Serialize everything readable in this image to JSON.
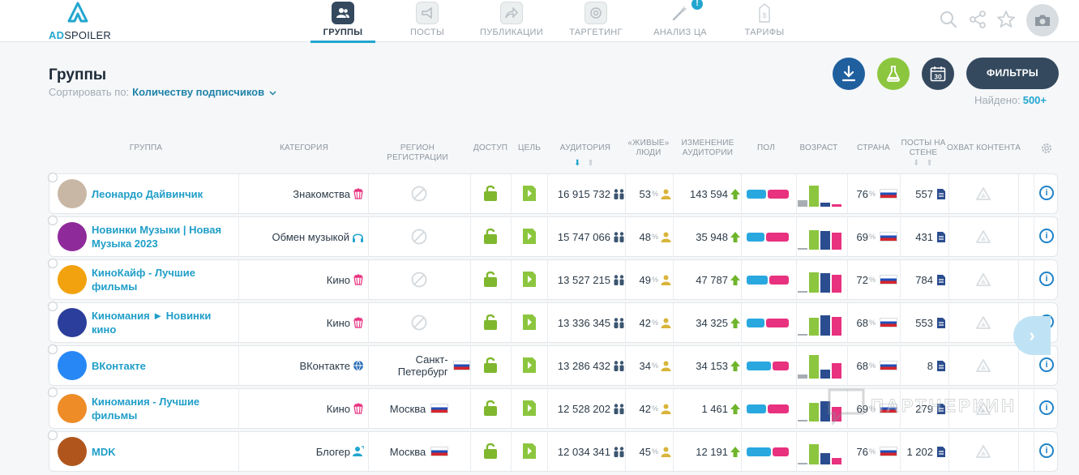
{
  "app": {
    "logo_part1": "AD",
    "logo_part2": "SPOILER"
  },
  "nav": [
    {
      "label": "ГРУППЫ",
      "icon": "groups-icon",
      "active": true
    },
    {
      "label": "ПОСТЫ",
      "icon": "megaphone-icon"
    },
    {
      "label": "ПУБЛИКАЦИИ",
      "icon": "share-icon"
    },
    {
      "label": "ТАРГЕТИНГ",
      "icon": "target-icon"
    },
    {
      "label": "АНАЛИЗ ЦА",
      "icon": "magic-wand-icon",
      "badge": "!"
    },
    {
      "label": "ТАРИФЫ",
      "icon": "price-tag-icon"
    }
  ],
  "header": {
    "title": "Группы",
    "sort_label": "Сортировать по:",
    "sort_value": "Количеству подписчиков",
    "filters_label": "ФИЛЬТРЫ",
    "found_label": "Найдено:",
    "found_value": "500+",
    "calendar_day": "30"
  },
  "columns": {
    "group": "ГРУППА",
    "category": "КАТЕГОРИЯ",
    "region": "РЕГИОН РЕГИСТРАЦИИ",
    "access": "ДОСТУП",
    "goal": "ЦЕЛЬ",
    "audience": "АУДИТОРИЯ",
    "live": "«ЖИВЫЕ» ЛЮДИ",
    "change": "ИЗМЕНЕНИЕ АУДИТОРИИ",
    "sex": "ПОЛ",
    "age": "ВОЗРАСТ",
    "country": "СТРАНА",
    "posts": "ПОСТЫ НА СТЕНЕ",
    "reach": "ОХВАТ КОНТЕНТА"
  },
  "rows": [
    {
      "name": "Леонардо Дайвинчик",
      "category": "Знакомства",
      "category_icon": "popcorn-icon",
      "region": "",
      "audience": "16 915 732",
      "live": "53",
      "change": "143 594",
      "male": 0.48,
      "ages": [
        0.25,
        0.85,
        0.15,
        0.1
      ],
      "country": "76",
      "posts": "557",
      "avatar_color": "#c9b7a5"
    },
    {
      "name": "Новинки Музыки | Новая Музыка 2023",
      "category": "Обмен музыкой",
      "category_icon": "headphones-icon",
      "region": "",
      "audience": "15 747 066",
      "live": "48",
      "change": "35 948",
      "male": 0.45,
      "ages": [
        0.05,
        0.8,
        0.75,
        0.7
      ],
      "country": "69",
      "posts": "431",
      "avatar_color": "#8e2a9a"
    },
    {
      "name": "КиноКайф - Лучшие фильмы",
      "category": "Кино",
      "category_icon": "popcorn-icon",
      "region": "",
      "audience": "13 527 215",
      "live": "49",
      "change": "47 787",
      "male": 0.52,
      "ages": [
        0.05,
        0.82,
        0.8,
        0.72
      ],
      "country": "72",
      "posts": "784",
      "avatar_color": "#f2a20f"
    },
    {
      "name": "Киномания ► Новинки кино",
      "category": "Кино",
      "category_icon": "popcorn-icon",
      "region": "",
      "audience": "13 336 345",
      "live": "42",
      "change": "34 325",
      "male": 0.45,
      "ages": [
        0.05,
        0.72,
        0.82,
        0.78
      ],
      "country": "68",
      "posts": "553",
      "avatar_color": "#2b3e9c"
    },
    {
      "name": "ВКонтакте",
      "category": "ВКонтакте",
      "category_icon": "globe-icon",
      "region": "Санкт-Петербург",
      "audience": "13 286 432",
      "live": "34",
      "change": "34 153",
      "male": 0.6,
      "ages": [
        0.18,
        0.95,
        0.35,
        0.62
      ],
      "country": "68",
      "posts": "8",
      "avatar_color": "#2787f5"
    },
    {
      "name": "Киномания - Лучшие фильмы",
      "category": "Кино",
      "category_icon": "popcorn-icon",
      "region": "Москва",
      "audience": "12 528 202",
      "live": "42",
      "change": "1 461",
      "male": 0.48,
      "ages": [
        0.05,
        0.75,
        0.82,
        0.6
      ],
      "country": "69",
      "posts": "279",
      "avatar_color": "#ee8c28"
    },
    {
      "name": "MDK",
      "category": "Блогер",
      "category_icon": "blogger-icon",
      "region": "Москва",
      "audience": "12 034 341",
      "live": "45",
      "change": "12 191",
      "male": 0.6,
      "ages": [
        0.05,
        0.82,
        0.45,
        0.25
      ],
      "country": "76",
      "posts": "1 202",
      "avatar_color": "#b0561c"
    }
  ],
  "colors": {
    "accent": "#22a6cf",
    "dark": "#34495e",
    "green": "#8cc63f",
    "male": "#29a8e0",
    "female": "#e8317f",
    "age_gray": "#a7adb3",
    "age_green": "#8cc63f",
    "age_blue": "#2b4d8f",
    "age_pink": "#e8317f"
  },
  "watermark": "ПАРТНЕРКИН"
}
